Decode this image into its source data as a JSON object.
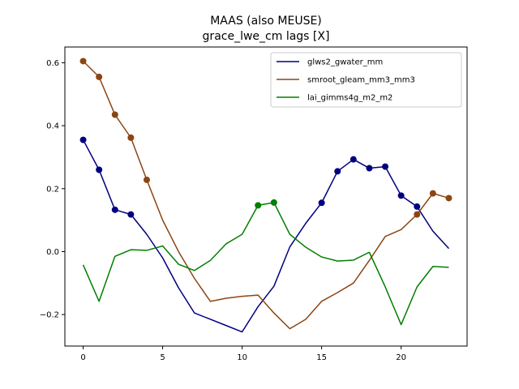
{
  "chart_data": {
    "type": "line",
    "title": "MAAS (also MEUSE)",
    "subtitle": "grace_lwe_cm lags [X]",
    "xlabel": "",
    "ylabel": "",
    "xlim": [
      -1.15,
      24.15
    ],
    "ylim": [
      -0.3,
      0.65
    ],
    "xticks": [
      0,
      5,
      10,
      15,
      20
    ],
    "yticks": [
      -0.2,
      0.0,
      0.2,
      0.4,
      0.6
    ],
    "ytick_labels": [
      "−0.2",
      "0.0",
      "0.2",
      "0.4",
      "0.6"
    ],
    "grid": false,
    "legend_position": "top-right",
    "series": [
      {
        "name": "glws2_gwater_mm",
        "color": "#00007f",
        "x": [
          0,
          1,
          2,
          3,
          4,
          5,
          6,
          7,
          8,
          9,
          10,
          11,
          12,
          13,
          14,
          15,
          16,
          17,
          18,
          19,
          20,
          21,
          22,
          23
        ],
        "values": [
          0.355,
          0.26,
          0.133,
          0.118,
          0.055,
          -0.02,
          -0.115,
          -0.195,
          -0.215,
          -0.235,
          -0.255,
          -0.175,
          -0.11,
          0.015,
          0.09,
          0.155,
          0.255,
          0.293,
          0.265,
          0.27,
          0.178,
          0.143,
          0.065,
          0.01
        ],
        "marker_indices": [
          0,
          1,
          2,
          3,
          15,
          16,
          17,
          18,
          19,
          20,
          21
        ]
      },
      {
        "name": "smroot_gleam_mm3_mm3",
        "color": "#8b4513",
        "x": [
          0,
          1,
          2,
          3,
          4,
          5,
          6,
          7,
          8,
          9,
          10,
          11,
          12,
          13,
          14,
          15,
          16,
          17,
          18,
          19,
          20,
          21,
          22,
          23
        ],
        "values": [
          0.605,
          0.555,
          0.435,
          0.362,
          0.228,
          0.1,
          0.0,
          -0.085,
          -0.158,
          -0.148,
          -0.142,
          -0.138,
          -0.195,
          -0.245,
          -0.215,
          -0.158,
          -0.13,
          -0.1,
          -0.028,
          0.048,
          0.07,
          0.118,
          0.185,
          0.17
        ],
        "marker_indices": [
          0,
          1,
          2,
          3,
          4,
          21,
          22,
          23
        ]
      },
      {
        "name": "lai_gimms4g_m2_m2",
        "color": "#007f00",
        "x": [
          0,
          1,
          2,
          3,
          4,
          5,
          6,
          7,
          8,
          9,
          10,
          11,
          12,
          13,
          14,
          15,
          16,
          17,
          18,
          19,
          20,
          21,
          22,
          23
        ],
        "values": [
          -0.042,
          -0.158,
          -0.015,
          0.006,
          0.004,
          0.018,
          -0.04,
          -0.06,
          -0.028,
          0.025,
          0.055,
          0.147,
          0.156,
          0.055,
          0.014,
          -0.017,
          -0.03,
          -0.027,
          -0.002,
          -0.112,
          -0.232,
          -0.112,
          -0.047,
          -0.05
        ],
        "marker_indices": [
          11,
          12
        ]
      }
    ]
  }
}
